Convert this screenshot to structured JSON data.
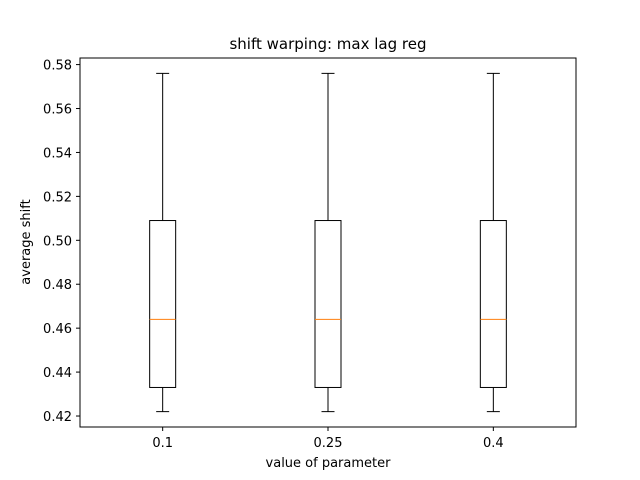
{
  "chart_data": {
    "type": "boxplot",
    "title": "shift warping: max lag reg",
    "xlabel": "value of parameter",
    "ylabel": "average shift",
    "categories": [
      "0.1",
      "0.25",
      "0.4"
    ],
    "boxes": [
      {
        "category": "0.1",
        "whisker_low": 0.422,
        "q1": 0.433,
        "median": 0.464,
        "q3": 0.509,
        "whisker_high": 0.576
      },
      {
        "category": "0.25",
        "whisker_low": 0.422,
        "q1": 0.433,
        "median": 0.464,
        "q3": 0.509,
        "whisker_high": 0.576
      },
      {
        "category": "0.4",
        "whisker_low": 0.422,
        "q1": 0.433,
        "median": 0.464,
        "q3": 0.509,
        "whisker_high": 0.576
      }
    ],
    "ylim": [
      0.415,
      0.583
    ],
    "yticks": [
      0.42,
      0.44,
      0.46,
      0.48,
      0.5,
      0.52,
      0.54,
      0.56,
      0.58
    ],
    "ytick_labels": [
      "0.42",
      "0.44",
      "0.46",
      "0.48",
      "0.50",
      "0.52",
      "0.54",
      "0.56",
      "0.58"
    ],
    "grid": false,
    "colors": {
      "box": "#000000",
      "median": "#ff7f0e",
      "axes": "#000000"
    }
  }
}
